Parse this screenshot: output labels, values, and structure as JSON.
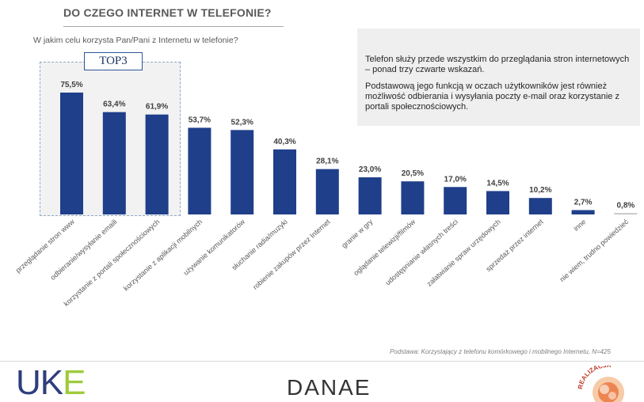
{
  "header": {
    "title": "DO CZEGO INTERNET W TELEFONIE?",
    "question": "W jakim celu korzysta Pan/Pani z Internetu w telefonie?"
  },
  "info_box": {
    "paragraph_1": "Telefon służy przede wszystkim do przeglądania stron internetowych – ponad trzy czwarte wskazań.",
    "paragraph_2": "Podstawową jego funkcją w oczach użytkowników jest również możliwość odbierania i wysyłania poczty e-mail oraz korzystanie z portali społecznościowych."
  },
  "top3_label": "TOP3",
  "footnote": "Podstawa: Korzystający z telefonu komórkowego i mobilnego Internetu, N=425",
  "logos": {
    "uke_u": "U",
    "uke_k": "K",
    "uke_e": "E",
    "danae": "DANAE",
    "realizacja": "REALIZACJA"
  },
  "colors": {
    "bar": "#1f3f8a",
    "bar_other": "#bfbfbf",
    "title": "#595959"
  },
  "chart_data": {
    "type": "bar",
    "categories": [
      "przeglądanie stron www",
      "odbieranie/wysyłanie emaili",
      "korzystanie z portali społecznościowych",
      "korzystanie z aplikacji mobilnych",
      "używanie komunikatorów",
      "słuchanie radia/muzyki",
      "robienie zakupów przez Internet",
      "granie w gry",
      "oglądanie telewizji/filmów",
      "udostępnianie własnych treści",
      "załatwianie spraw urzędowych",
      "sprzedaż przez internet",
      "inne",
      "nie wiem, trudno powiedzieć"
    ],
    "values": [
      75.5,
      63.4,
      61.9,
      53.7,
      52.3,
      40.3,
      28.1,
      23.0,
      20.5,
      17.0,
      14.5,
      10.2,
      2.7,
      0.8
    ],
    "labels": [
      "75,5%",
      "63,4%",
      "61,9%",
      "53,7%",
      "52,3%",
      "40,3%",
      "28,1%",
      "23,0%",
      "20,5%",
      "17,0%",
      "14,5%",
      "10,2%",
      "2,7%",
      "0,8%"
    ],
    "highlight_top": 3,
    "ylim": [
      0,
      100
    ]
  }
}
